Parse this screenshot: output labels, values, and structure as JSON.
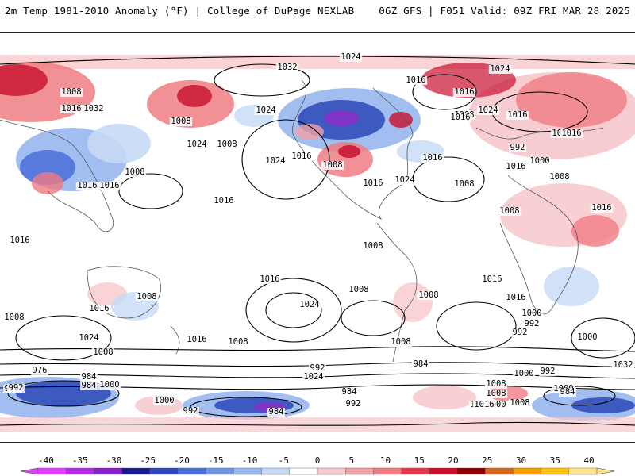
{
  "header": {
    "left_title": "2m Temp 1981-2010 Anomaly (°F) | College of DuPage NEXLAB",
    "right_title": "06Z GFS | F051 Valid: 09Z FRI MAR 28 2025"
  },
  "map": {
    "projection": "equirectangular-global",
    "variable": "2m temperature anomaly",
    "contour_variable": "mean sea level pressure",
    "contour_labels": [
      "1024",
      "1032",
      "1016",
      "1024",
      "1008",
      "1016",
      "1016",
      "1032",
      "1024",
      "1008",
      "1024",
      "1016",
      "1008",
      "1016",
      "1008",
      "1024",
      "1008",
      "1016",
      "1016",
      "1024",
      "1016",
      "1008",
      "1016",
      "1000",
      "992",
      "1008",
      "1008",
      "1024",
      "1016",
      "1008",
      "1016",
      "1016",
      "1016",
      "1008",
      "1016",
      "1016",
      "1008",
      "1016",
      "1008",
      "1016",
      "1016",
      "1024",
      "1008",
      "1008",
      "1016",
      "1008",
      "1000",
      "992",
      "1024",
      "1008",
      "1000",
      "992",
      "1016",
      "1008",
      "1008",
      "984",
      "976",
      "984",
      "1000",
      "992",
      "1024",
      "1032",
      "1000",
      "984",
      "1008",
      "1016",
      "976",
      "984",
      "992",
      "1000",
      "992",
      "984",
      "984",
      "992",
      "1000",
      "1008",
      "1016",
      "1008",
      "1000",
      "992"
    ],
    "colors": {
      "land_outline": "#555555",
      "contour": "#000000",
      "warm_light": "#f7c8cc",
      "warm_mid": "#ef7c82",
      "warm_strong": "#c8102e",
      "cold_light": "#c6d9f5",
      "cold_mid": "#6f96e6",
      "cold_strong": "#2c49b8",
      "cold_extreme": "#8a2fc6"
    }
  },
  "colorbar": {
    "ticks": [
      "-40",
      "-35",
      "-30",
      "-25",
      "-20",
      "-15",
      "-10",
      "-5",
      "0",
      "5",
      "10",
      "15",
      "20",
      "25",
      "30",
      "35",
      "40"
    ],
    "segment_colors": [
      "#e040fb",
      "#b02ee0",
      "#8a1fc7",
      "#1a1a8c",
      "#2c49b8",
      "#4a6fd8",
      "#6f96e6",
      "#98b7ee",
      "#c6d9f5",
      "#ffffff",
      "#f7c8cc",
      "#f2a0a7",
      "#ef7c82",
      "#e23a4a",
      "#c8102e",
      "#8b0000",
      "#d2691e",
      "#f59f00",
      "#ffc20e",
      "#ffe28a"
    ]
  }
}
